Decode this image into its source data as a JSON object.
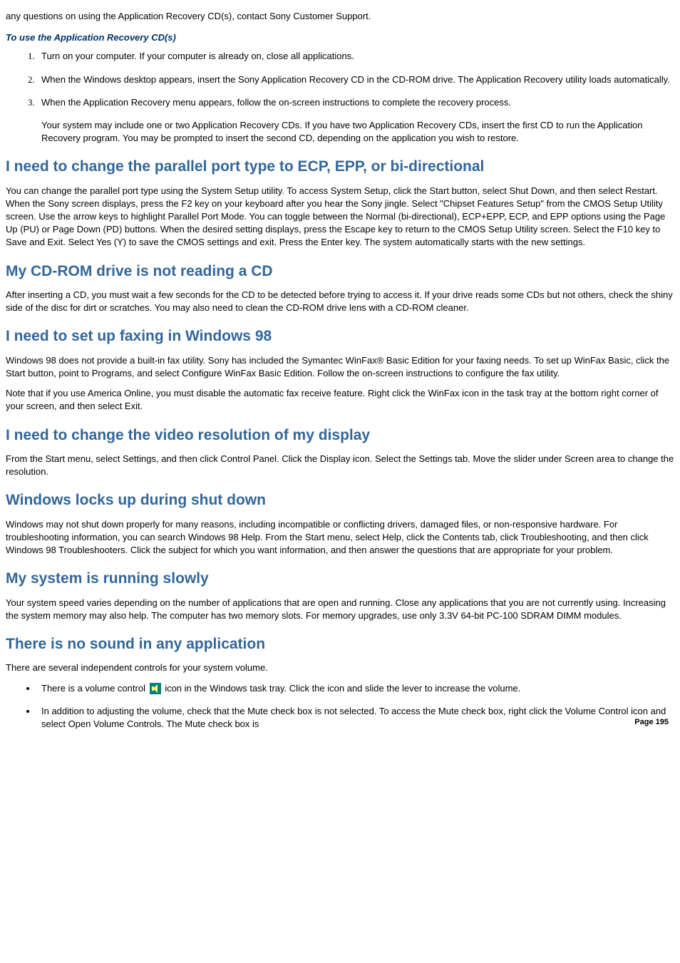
{
  "intro": "any questions on using the Application Recovery CD(s), contact Sony Customer Support.",
  "subHeading": "To use the Application Recovery CD(s)",
  "steps": [
    "Turn on your computer. If your computer is already on, close all applications.",
    "When the Windows desktop appears, insert the Sony Application Recovery CD in the CD-ROM drive. The Application Recovery utility loads automatically.",
    "When the Application Recovery menu appears, follow the on-screen instructions to complete the recovery process."
  ],
  "note": "Your system may include one or two Application Recovery CDs. If you have two Application Recovery CDs, insert the first CD to run the Application Recovery program. You may be prompted to insert the second CD, depending on the application you wish to restore.",
  "sections": {
    "parallel": {
      "title": "I need to change the parallel port type to ECP, EPP, or bi-directional",
      "body": "You can change the parallel port type using the System Setup utility. To access System Setup, click the Start button, select Shut Down, and then select Restart. When the Sony screen displays, press the F2 key on your keyboard after you hear the Sony jingle. Select \"Chipset Features Setup\" from the CMOS Setup Utility screen. Use the arrow keys to highlight Parallel Port Mode. You can toggle between the Normal (bi-directional), ECP+EPP, ECP, and EPP options using the Page Up (PU) or Page Down (PD) buttons. When the desired setting displays, press the Escape key to return to the CMOS Setup Utility screen. Select the F10 key to Save and Exit. Select Yes (Y) to save the CMOS settings and exit. Press the Enter key. The system automatically starts with the new settings."
    },
    "cdrom": {
      "title": "My CD-ROM drive is not reading a CD",
      "body": "After inserting a CD, you must wait a few seconds for the CD to be detected before trying to access it. If your drive reads some CDs but not others, check the shiny side of the disc for dirt or scratches. You may also need to clean the CD-ROM drive lens with a CD-ROM cleaner."
    },
    "fax": {
      "title": "I need to set up faxing in Windows 98",
      "body1": "Windows 98 does not provide a built-in fax utility. Sony has included the Symantec WinFax® Basic Edition for your faxing needs. To set up WinFax Basic, click the Start button, point to Programs, and select Configure WinFax Basic Edition. Follow the on-screen instructions to configure the fax utility.",
      "body2": "Note that if you use America Online, you must disable the automatic fax receive feature. Right click the WinFax icon in the task tray at the bottom right corner of your screen, and then select Exit."
    },
    "video": {
      "title": "I need to change the video resolution of my display",
      "body": "From the Start menu, select Settings, and then click Control Panel. Click the Display icon. Select the Settings tab. Move the slider under Screen area to change the resolution."
    },
    "lockup": {
      "title": "Windows locks up during shut down",
      "body": "Windows may not shut down properly for many reasons, including incompatible or conflicting drivers, damaged files, or non-responsive hardware. For troubleshooting information, you can search Windows 98 Help. From the Start menu, select Help, click the Contents tab, click Troubleshooting, and then click Windows 98 Troubleshooters. Click the subject for which you want information, and then answer the questions that are appropriate for your problem."
    },
    "slow": {
      "title": "My system is running slowly",
      "body": "Your system speed varies depending on the number of applications that are open and running. Close any applications that you are not currently using. Increasing the system memory may also help. The computer has two memory slots. For memory upgrades, use only 3.3V 64-bit PC-100 SDRAM DIMM modules."
    },
    "sound": {
      "title": "There is no sound in any application",
      "intro": "There are several independent controls for your system volume.",
      "bullet1a": "There is a volume control ",
      "bullet1b": " icon in the Windows task tray. Click the icon and slide the lever to increase the volume.",
      "bullet2": "In addition to adjusting the volume, check that the Mute check box is not selected. To access the Mute check box, right click the Volume Control icon and select Open Volume Controls. The Mute check box is"
    }
  },
  "pageNum": "Page 195"
}
